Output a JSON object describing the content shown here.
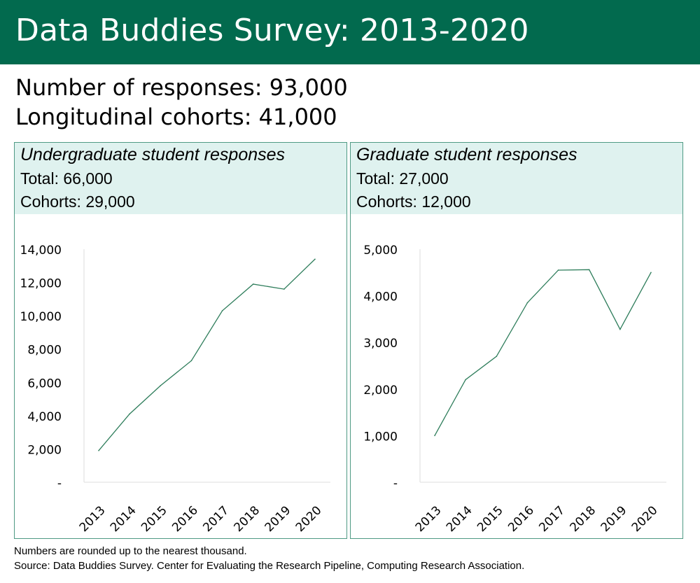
{
  "header": {
    "title": "Data Buddies Survey: 2013-2020"
  },
  "summary": {
    "responses": "Number of responses: 93,000",
    "cohorts": "Longitudinal cohorts: 41,000"
  },
  "panels": [
    {
      "title": "Undergraduate student responses",
      "total": "Total: 66,000",
      "cohorts": "Cohorts: 29,000"
    },
    {
      "title": "Graduate student responses",
      "total": "Total: 27,000",
      "cohorts": "Cohorts: 12,000"
    }
  ],
  "footnotes": {
    "rounding": "Numbers are rounded up to the nearest thousand.",
    "source": "Source: Data Buddies Survey. Center for Evaluating the Research Pipeline, Computing Research Association."
  },
  "colors": {
    "banner": "#026a4e",
    "panel_header": "#dff2ef",
    "line": "#2e7d5b"
  },
  "chart_data": [
    {
      "type": "line",
      "title": "",
      "xlabel": "",
      "ylabel": "",
      "x": [
        "2013",
        "2014",
        "2015",
        "2016",
        "2017",
        "2018",
        "2019",
        "2020"
      ],
      "series": [
        {
          "values": [
            1900,
            4100,
            5800,
            7300,
            10300,
            11900,
            11600,
            13400
          ]
        }
      ],
      "ylim": [
        0,
        14000
      ],
      "yticks": [
        0,
        2000,
        4000,
        6000,
        8000,
        10000,
        12000,
        14000
      ],
      "ytick_labels": [
        "-",
        "2,000",
        "4,000",
        "6,000",
        "8,000",
        "10,000",
        "12,000",
        "14,000"
      ],
      "grid": false
    },
    {
      "type": "line",
      "title": "",
      "xlabel": "",
      "ylabel": "",
      "x": [
        "2013",
        "2014",
        "2015",
        "2016",
        "2017",
        "2018",
        "2019",
        "2020"
      ],
      "series": [
        {
          "values": [
            1000,
            2200,
            2700,
            3850,
            4550,
            4560,
            3280,
            4500
          ]
        }
      ],
      "ylim": [
        0,
        5000
      ],
      "yticks": [
        0,
        1000,
        2000,
        3000,
        4000,
        5000
      ],
      "ytick_labels": [
        "-",
        "1,000",
        "2,000",
        "3,000",
        "4,000",
        "5,000"
      ],
      "grid": false
    }
  ]
}
